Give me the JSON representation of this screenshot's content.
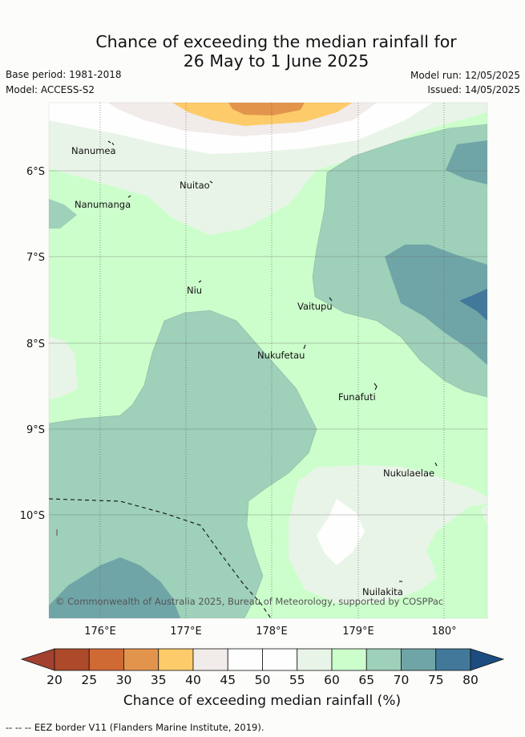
{
  "title": {
    "line1": "Chance of exceeding the median rainfall for",
    "line2": "26 May to 1 June 2025"
  },
  "meta": {
    "base_period": "Base period: 1981-2018",
    "model": "Model: ACCESS-S2",
    "model_run": "Model run: 12/05/2025",
    "issued": "Issued: 14/05/2025"
  },
  "map": {
    "lat_ticks": [
      "6°S",
      "7°S",
      "8°S",
      "9°S",
      "10°S"
    ],
    "lon_ticks": [
      "176°E",
      "177°E",
      "178°E",
      "179°E",
      "180°"
    ],
    "places": [
      "Nanumea",
      "Nuitao",
      "Nanumanga",
      "Niu",
      "Vaitupu",
      "Nukufetau",
      "Funafuti",
      "Nukulaelae",
      "Nuilakita"
    ],
    "copyright": "© Commonwealth of Australia 2025, Bureau of Meteorology, supported by COSPPac"
  },
  "colorbar": {
    "title": "Chance of exceeding median rainfall (%)",
    "ticks": [
      "20",
      "25",
      "30",
      "35",
      "40",
      "45",
      "50",
      "55",
      "60",
      "65",
      "70",
      "75",
      "80"
    ],
    "colors": [
      "#ad4a2a",
      "#cf6a35",
      "#e3944c",
      "#fdcb69",
      "#f1ebe9",
      "#fefefe",
      "#fefefe",
      "#e9f4e8",
      "#ccfecc",
      "#9ed0ba",
      "#70a5a7",
      "#42799a"
    ],
    "low_color": "#a34030",
    "high_color": "#1d4c80"
  },
  "footer": "--  --  -- EEZ border V11 (Flanders Marine Institute, 2019)."
}
